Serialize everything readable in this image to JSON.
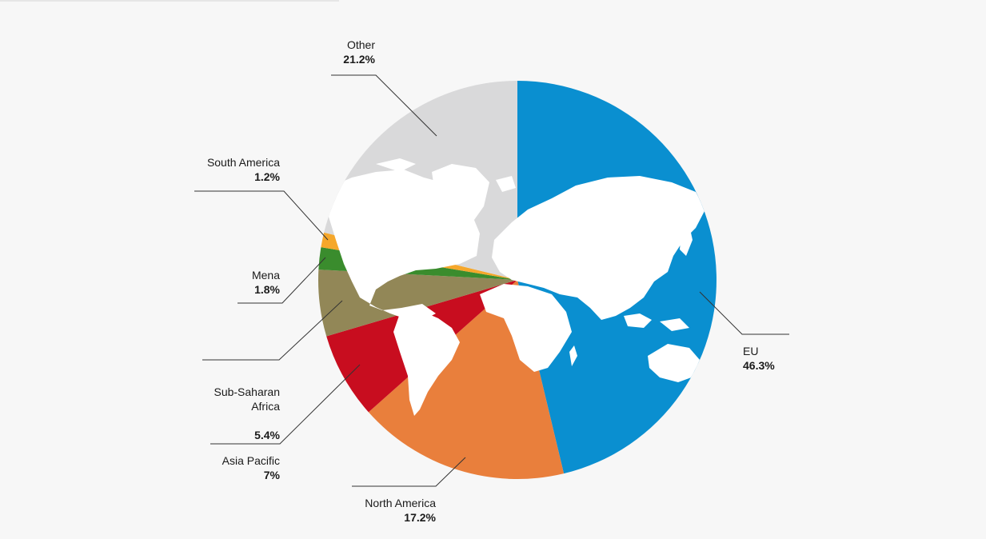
{
  "chart_data": {
    "type": "pie",
    "title": "",
    "start_angle_deg": 0,
    "direction": "clockwise",
    "slices": [
      {
        "label": "EU",
        "value": 46.3,
        "display": "46.3%",
        "color": "#0a8fd0"
      },
      {
        "label": "North America",
        "value": 17.2,
        "display": "17.2%",
        "color": "#e97f3c"
      },
      {
        "label": "Asia Pacific",
        "value": 7,
        "display": "7%",
        "color": "#c80d1f"
      },
      {
        "label": "Sub-Saharan\nAfrica",
        "value": 5.4,
        "display": "5.4%",
        "color": "#928757"
      },
      {
        "label": "Mena",
        "value": 1.8,
        "display": "1.8%",
        "color": "#3a8c2d"
      },
      {
        "label": "South America",
        "value": 1.2,
        "display": "1.2%",
        "color": "#f5a72b"
      },
      {
        "label": "Other",
        "value": 21.2,
        "display": "21.2%",
        "color": "#d9d9da"
      }
    ],
    "background_image": "world-map-silhouette",
    "legend": "callout-labels"
  }
}
